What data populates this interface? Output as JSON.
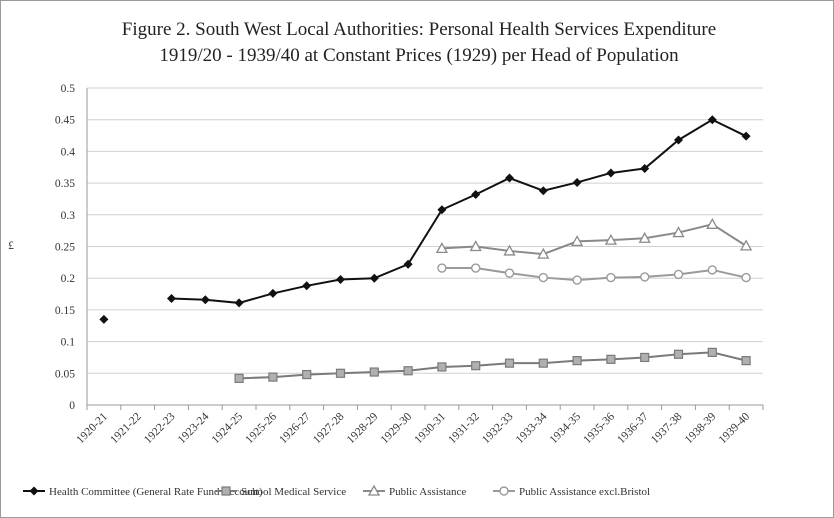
{
  "chart_data": {
    "type": "line",
    "title": "Figure 2. South West Local Authorities: Personal Health Services Expenditure",
    "subtitle": "1919/20 - 1939/40 at Constant Prices (1929) per Head of Population",
    "ylabel": "£",
    "xlabel": "",
    "ylim": [
      0,
      0.5
    ],
    "yticks": [
      0,
      0.05,
      0.1,
      0.15,
      0.2,
      0.25,
      0.3,
      0.35,
      0.4,
      0.45,
      0.5
    ],
    "ytick_labels": [
      "0",
      "0.05",
      "0.1",
      "0.15",
      "0.2",
      "0.25",
      "0.3",
      "0.35",
      "0.4",
      "0.45",
      "0.5"
    ],
    "grid": true,
    "legend_position": "bottom",
    "categories": [
      "1920-21",
      "1921-22",
      "1922-23",
      "1923-24",
      "1924-25",
      "1925-26",
      "1926-27",
      "1927-28",
      "1928-29",
      "1929-30",
      "1930-31",
      "1931-32",
      "1932-33",
      "1933-34",
      "1934-35",
      "1935-36",
      "1936-37",
      "1937-38",
      "1938-39",
      "1939-40"
    ],
    "series": [
      {
        "name": "Health Committee (General Rate Fund Account)",
        "marker": "diamond",
        "color": "#111111",
        "values": [
          0.135,
          null,
          0.168,
          0.166,
          0.161,
          0.176,
          0.188,
          0.198,
          0.2,
          0.222,
          0.308,
          0.332,
          0.358,
          0.338,
          0.351,
          0.366,
          0.373,
          0.418,
          0.45,
          0.424
        ]
      },
      {
        "name": "School Medical Service",
        "marker": "square",
        "color": "#7a7a7a",
        "values": [
          null,
          null,
          null,
          null,
          0.042,
          0.044,
          0.048,
          0.05,
          0.052,
          0.054,
          0.06,
          0.062,
          0.066,
          0.066,
          0.07,
          0.072,
          0.075,
          0.08,
          0.083,
          0.07
        ]
      },
      {
        "name": "Public Assistance",
        "marker": "triangle",
        "color": "#8a8a8a",
        "values": [
          null,
          null,
          null,
          null,
          null,
          null,
          null,
          null,
          null,
          null,
          0.247,
          0.25,
          0.243,
          0.238,
          0.258,
          0.26,
          0.263,
          0.272,
          0.285,
          0.251
        ]
      },
      {
        "name": "Public Assistance excl.Bristol",
        "marker": "circle",
        "color": "#9a9a9a",
        "values": [
          null,
          null,
          null,
          null,
          null,
          null,
          null,
          null,
          null,
          null,
          0.216,
          0.216,
          0.208,
          0.201,
          0.197,
          0.201,
          0.202,
          0.206,
          0.213,
          0.201
        ]
      }
    ]
  }
}
